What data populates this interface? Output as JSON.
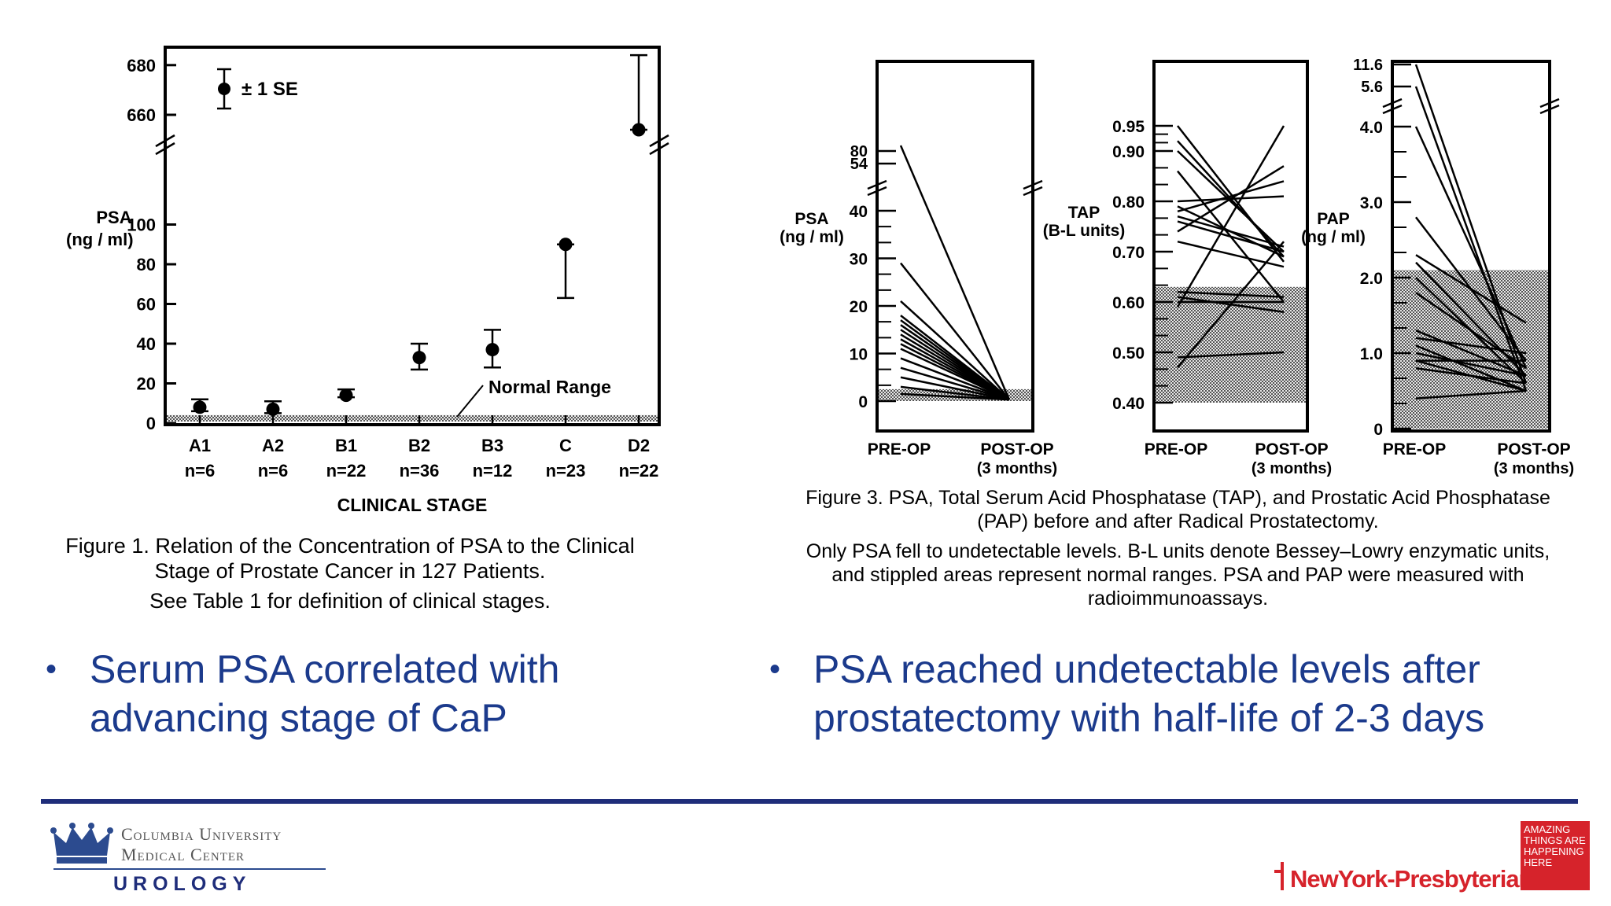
{
  "colors": {
    "bullet_text": "#1b3a8c",
    "rule": "#1f2d7a",
    "columbia": "#2c4b8f",
    "nyp_red": "#d6232b",
    "nyp_text": "#d6232b"
  },
  "chart_data": [
    {
      "type": "scatter",
      "ylabel": "PSA\n(ng / ml)",
      "xlabel": "CLINICAL STAGE",
      "legend": "± 1 SE",
      "annotation": "Normal Range",
      "categories": [
        "A1",
        "A2",
        "B1",
        "B2",
        "B3",
        "C",
        "D2"
      ],
      "n_labels": [
        "n=6",
        "n=6",
        "n=22",
        "n=36",
        "n=12",
        "n=23",
        "n=22"
      ],
      "y_ticks_lower": [
        0,
        20,
        40,
        60,
        80,
        100
      ],
      "y_ticks_upper": [
        660,
        680
      ],
      "values": [
        8,
        7,
        14,
        33,
        37,
        90,
        654
      ],
      "error_high": [
        12,
        11,
        17,
        40,
        47,
        90,
        684
      ],
      "error_low": [
        6,
        5,
        13,
        27,
        28,
        63,
        654
      ],
      "normal_range": [
        0,
        4
      ],
      "caption_line1": "Figure 1. Relation of the Concentration of PSA to the Clinical",
      "caption_line2": "Stage of Prostate Cancer in 127 Patients.",
      "caption_line3": "See Table 1 for definition of clinical stages."
    },
    {
      "type": "line",
      "panels": [
        {
          "ylabel": "PSA\n(ng / ml)",
          "y_ticks": [
            "0",
            "10",
            "20",
            "30",
            "40"
          ],
          "y_ticks_top": [
            "80",
            "54"
          ],
          "x": [
            "PRE-OP",
            "POST-OP"
          ],
          "x_sub": "(3 months)",
          "normal_range": [
            0,
            2.5
          ],
          "pre_values": [
            80,
            29,
            21,
            18,
            17,
            16,
            15,
            14,
            13,
            12,
            11,
            9,
            7,
            5,
            3,
            1.5
          ],
          "post_values": [
            0.3,
            0.3,
            0.3,
            0.3,
            0.3,
            0.3,
            0.3,
            0.3,
            0.3,
            0.3,
            0.3,
            0.3,
            0.3,
            0.3,
            0.3,
            0.3
          ]
        },
        {
          "ylabel": "TAP\n(B-L units)",
          "y_ticks": [
            "0.40",
            "0.50",
            "0.60",
            "0.70",
            "0.80",
            "0.90",
            "0.95"
          ],
          "x": [
            "PRE-OP",
            "POST-OP"
          ],
          "x_sub": "(3 months)",
          "normal_range": [
            0.4,
            0.63
          ],
          "pre_values": [
            0.95,
            0.92,
            0.9,
            0.86,
            0.8,
            0.79,
            0.78,
            0.77,
            0.76,
            0.74,
            0.72,
            0.62,
            0.61,
            0.6,
            0.59,
            0.49,
            0.47
          ],
          "post_values": [
            0.68,
            0.69,
            0.7,
            0.6,
            0.81,
            0.69,
            0.84,
            0.71,
            0.7,
            0.87,
            0.67,
            0.61,
            0.58,
            0.6,
            0.95,
            0.5,
            0.72
          ]
        },
        {
          "ylabel": "PAP\n(ng / ml)",
          "y_ticks": [
            "0",
            "1.0",
            "2.0",
            "3.0",
            "4.0"
          ],
          "y_ticks_top": [
            "11.6",
            "5.6"
          ],
          "x": [
            "PRE-OP",
            "POST-OP"
          ],
          "x_sub": "(3 months)",
          "normal_range": [
            0,
            2.1
          ],
          "pre_values": [
            11.6,
            5.6,
            4.0,
            2.8,
            2.3,
            2.2,
            2.0,
            1.8,
            1.3,
            1.2,
            1.1,
            1.0,
            0.9,
            0.9,
            0.8,
            0.4
          ],
          "post_values": [
            0.6,
            0.5,
            0.8,
            0.9,
            1.4,
            0.7,
            0.6,
            0.8,
            0.7,
            1.0,
            0.5,
            0.7,
            0.5,
            0.9,
            0.6,
            0.5
          ]
        }
      ],
      "caption_line1": "Figure 3. PSA, Total Serum Acid Phosphatase (TAP), and Prostatic Acid Phosphatase",
      "caption_line2": "(PAP) before and after Radical Prostatectomy.",
      "caption_line3": "Only PSA fell to undetectable levels. B-L units denote Bessey–Lowry enzymatic units,",
      "caption_line4": "and stippled areas represent normal ranges. PSA and PAP were measured with",
      "caption_line5": "radioimmunoassays."
    }
  ],
  "bullets": {
    "left_line1": "Serum PSA correlated with",
    "left_line2": "advancing stage of CaP",
    "right_line1": "PSA reached undetectable levels after",
    "right_line2": "prostatectomy with half-life of 2-3 days",
    "marker": "•"
  },
  "footer": {
    "columbia_line1": "Columbia University",
    "columbia_line2": "Medical Center",
    "columbia_dept": "UROLOGY",
    "nyp_name": "NewYork-Presbyterian",
    "nyp_tag": "AMAZING THINGS ARE HAPPENING HERE"
  }
}
